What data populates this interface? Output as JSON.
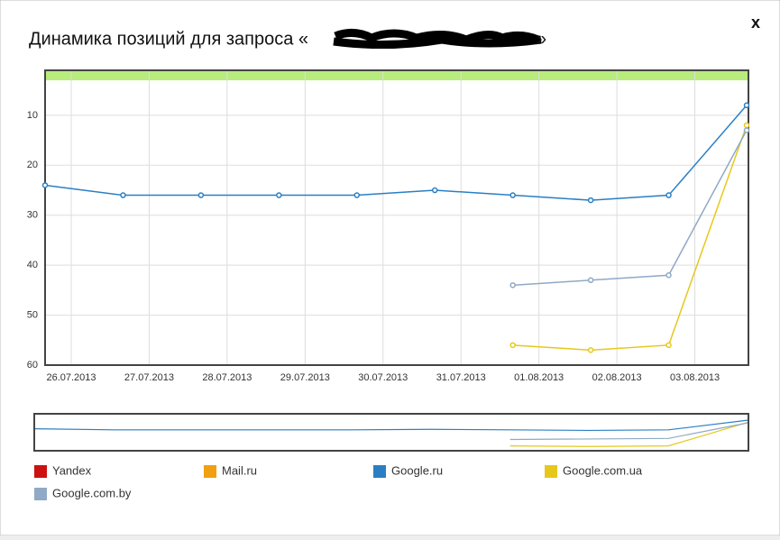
{
  "dialog": {
    "title": "Динамика позиций для запроса «",
    "title_end": "»",
    "close": "x"
  },
  "chart_data": {
    "type": "line",
    "categories": [
      "26.07.2013",
      "27.07.2013",
      "28.07.2013",
      "29.07.2013",
      "30.07.2013",
      "31.07.2013",
      "01.08.2013",
      "02.08.2013",
      "03.08.2013",
      null
    ],
    "ylim": [
      1,
      60
    ],
    "yticks": [
      10,
      20,
      30,
      40,
      50,
      60
    ],
    "y_inverted": true,
    "grid": true,
    "top_zone": [
      1,
      3
    ],
    "top_zone_color": "#b8ec7c",
    "series": [
      {
        "name": "Yandex",
        "color": "#cc1111",
        "values": [
          null,
          null,
          null,
          null,
          null,
          null,
          null,
          null,
          null,
          null
        ]
      },
      {
        "name": "Mail.ru",
        "color": "#f0a010",
        "values": [
          null,
          null,
          null,
          null,
          null,
          null,
          null,
          null,
          null,
          null
        ]
      },
      {
        "name": "Google.ru",
        "color": "#2a7fc4",
        "values": [
          24,
          26,
          26,
          26,
          26,
          25,
          26,
          27,
          26,
          8
        ]
      },
      {
        "name": "Google.com.ua",
        "color": "#e6c81c",
        "values": [
          null,
          null,
          null,
          null,
          null,
          null,
          56,
          57,
          56,
          12
        ]
      },
      {
        "name": "Google.com.by",
        "color": "#8fa9c6",
        "values": [
          null,
          null,
          null,
          null,
          null,
          null,
          44,
          43,
          42,
          13
        ]
      }
    ]
  }
}
